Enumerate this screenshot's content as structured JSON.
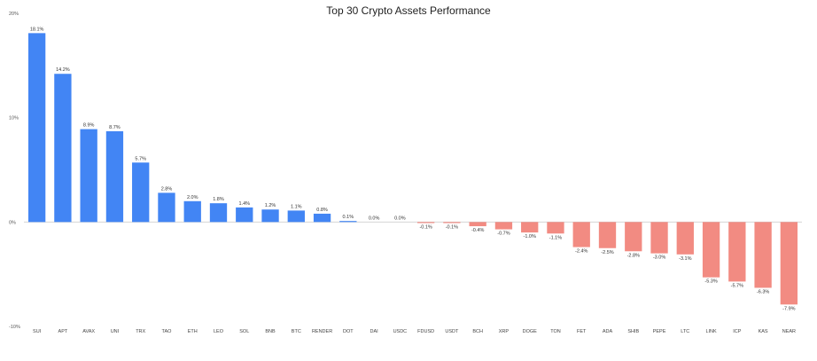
{
  "chart_data": {
    "type": "bar",
    "title": "Top 30 Crypto Assets Performance",
    "xlabel": "",
    "ylabel": "",
    "ylim": [
      -10,
      20
    ],
    "yticks": [
      "20%",
      "10%",
      "0%",
      "-10%"
    ],
    "ytick_values": [
      20,
      10,
      0,
      -10
    ],
    "grid": false,
    "colors": {
      "positive": "#4285f4",
      "negative": "#f28b82",
      "zero_line": "#cfcfcf"
    },
    "categories": [
      "SUI",
      "APT",
      "AVAX",
      "UNI",
      "TRX",
      "TAO",
      "ETH",
      "LEO",
      "SOL",
      "BNB",
      "BTC",
      "RENDER",
      "DOT",
      "DAI",
      "USDC",
      "FDUSD",
      "USDT",
      "BCH",
      "XRP",
      "DOGE",
      "TON",
      "FET",
      "ADA",
      "SHIB",
      "PEPE",
      "LTC",
      "LINK",
      "ICP",
      "KAS",
      "NEAR"
    ],
    "values": [
      18.1,
      14.2,
      8.9,
      8.7,
      5.7,
      2.8,
      2.0,
      1.8,
      1.4,
      1.2,
      1.1,
      0.8,
      0.1,
      0.0,
      0.0,
      -0.1,
      -0.1,
      -0.4,
      -0.7,
      -1.0,
      -1.1,
      -2.4,
      -2.5,
      -2.8,
      -3.0,
      -3.1,
      -5.3,
      -5.7,
      -6.3,
      -7.9
    ],
    "data_labels": [
      "18.1%",
      "14.2%",
      "8.9%",
      "8.7%",
      "5.7%",
      "2.8%",
      "2.0%",
      "1.8%",
      "1.4%",
      "1.2%",
      "1.1%",
      "0.8%",
      "0.1%",
      "0.0%",
      "0.0%",
      "-0.1%",
      "-0.1%",
      "-0.4%",
      "-0.7%",
      "-1.0%",
      "-1.1%",
      "-2.4%",
      "-2.5%",
      "-2.8%",
      "-3.0%",
      "-3.1%",
      "-5.3%",
      "-5.7%",
      "-6.3%",
      "-7.9%"
    ]
  }
}
